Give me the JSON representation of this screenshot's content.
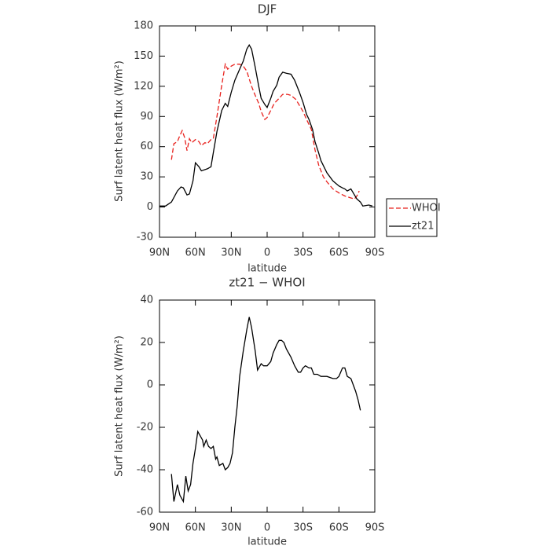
{
  "chart_data": [
    {
      "type": "line",
      "title": "DJF",
      "xlabel": "latitude",
      "ylabel": "Surf latent heat flux (W/m²)",
      "xlim": [
        90,
        -90
      ],
      "xticks": [
        {
          "value": 90,
          "label": "90N"
        },
        {
          "value": 60,
          "label": "60N"
        },
        {
          "value": 30,
          "label": "30N"
        },
        0,
        {
          "value": -30,
          "label": "30S"
        },
        {
          "value": -60,
          "label": "60S"
        },
        {
          "value": -90,
          "label": "90S"
        }
      ],
      "ylim": [
        -30,
        180
      ],
      "yticks": [
        -30,
        0,
        30,
        60,
        90,
        120,
        150,
        180
      ],
      "legend": "right",
      "series": [
        {
          "name": "WHOI",
          "color": "#e8201c",
          "line_style": "dashed",
          "x": [
            80,
            78,
            75,
            73,
            71,
            69,
            67,
            65,
            63,
            60,
            57,
            55,
            52,
            50,
            47,
            45,
            42,
            38,
            35,
            33,
            30,
            27,
            23,
            20,
            17,
            13,
            10,
            7,
            5,
            2,
            0,
            -3,
            -6,
            -10,
            -13,
            -17,
            -20,
            -24,
            -27,
            -30,
            -33,
            -37,
            -40,
            -43,
            -47,
            -50,
            -55,
            -60,
            -65,
            -70,
            -73,
            -75,
            -77
          ],
          "values": [
            47,
            63,
            65,
            71,
            76,
            69,
            56,
            68,
            64,
            67,
            65,
            61,
            64,
            63,
            67,
            68,
            90,
            121,
            142,
            137,
            140,
            142,
            142,
            140,
            135,
            120,
            111,
            103,
            95,
            87,
            89,
            96,
            103,
            108,
            112,
            112,
            111,
            107,
            101,
            95,
            87,
            77,
            57,
            42,
            30,
            25,
            18,
            14,
            11,
            9,
            8,
            11,
            16
          ]
        },
        {
          "name": "zt21",
          "color": "#000000",
          "line_style": "solid",
          "x": [
            90,
            85,
            80,
            75,
            72,
            70,
            67,
            65,
            62,
            60,
            57,
            55,
            50,
            47,
            45,
            42,
            38,
            35,
            33,
            30,
            27,
            23,
            20,
            17,
            15,
            13,
            10,
            7,
            5,
            2,
            0,
            -3,
            -5,
            -8,
            -10,
            -13,
            -16,
            -20,
            -23,
            -27,
            -30,
            -33,
            -35,
            -38,
            -40,
            -43,
            -45,
            -50,
            -55,
            -60,
            -63,
            -65,
            -67,
            -70,
            -72,
            -75,
            -78,
            -80,
            -85,
            -88
          ],
          "values": [
            1,
            1,
            5,
            16,
            20,
            19,
            12,
            13,
            26,
            44,
            40,
            36,
            38,
            40,
            54,
            75,
            96,
            103,
            100,
            114,
            126,
            137,
            145,
            157,
            161,
            157,
            139,
            120,
            108,
            102,
            99,
            108,
            115,
            121,
            129,
            134,
            133,
            132,
            126,
            114,
            104,
            92,
            87,
            77,
            65,
            54,
            46,
            34,
            26,
            21,
            19,
            18,
            16,
            18,
            14,
            8,
            5,
            1,
            2,
            1
          ]
        }
      ]
    },
    {
      "type": "line",
      "title": "zt21 − WHOI",
      "xlabel": "latitude",
      "ylabel": "Surf latent heat flux (W/m²)",
      "xlim": [
        90,
        -90
      ],
      "xticks": [
        {
          "value": 90,
          "label": "90N"
        },
        {
          "value": 60,
          "label": "60N"
        },
        {
          "value": 30,
          "label": "30N"
        },
        0,
        {
          "value": -30,
          "label": "30S"
        },
        {
          "value": -60,
          "label": "60S"
        },
        {
          "value": -90,
          "label": "90S"
        }
      ],
      "ylim": [
        -60,
        40
      ],
      "yticks": [
        -60,
        -40,
        -20,
        0,
        20,
        40
      ],
      "series": [
        {
          "color": "#000000",
          "line_style": "solid",
          "x": [
            80,
            78,
            75,
            73,
            71,
            70,
            68,
            66,
            64,
            62,
            60,
            58,
            56,
            54,
            53,
            51,
            49,
            47,
            45,
            43,
            42,
            40,
            37,
            35,
            33,
            31,
            29,
            27,
            25,
            23,
            20,
            17,
            15,
            13,
            10,
            8,
            5,
            3,
            0,
            -3,
            -5,
            -8,
            -10,
            -12,
            -14,
            -16,
            -20,
            -23,
            -26,
            -28,
            -30,
            -32,
            -35,
            -37,
            -39,
            -42,
            -45,
            -50,
            -55,
            -58,
            -60,
            -63,
            -65,
            -67,
            -70,
            -72,
            -74,
            -76,
            -78
          ],
          "values": [
            -42,
            -55,
            -47,
            -52,
            -54,
            -55,
            -43,
            -50,
            -47,
            -37,
            -30,
            -22,
            -24,
            -26,
            -29,
            -26,
            -29,
            -30,
            -29,
            -35,
            -34,
            -38,
            -37,
            -40,
            -39,
            -37,
            -32,
            -20,
            -10,
            4,
            16,
            26,
            32,
            27,
            16,
            7,
            10,
            9,
            9,
            11,
            15,
            19,
            21,
            21,
            20,
            17,
            13,
            9,
            6,
            6,
            8,
            9,
            8,
            8,
            5,
            5,
            4,
            4,
            3,
            3,
            4,
            8,
            8,
            4,
            3,
            0,
            -3,
            -7,
            -12
          ]
        }
      ]
    }
  ]
}
